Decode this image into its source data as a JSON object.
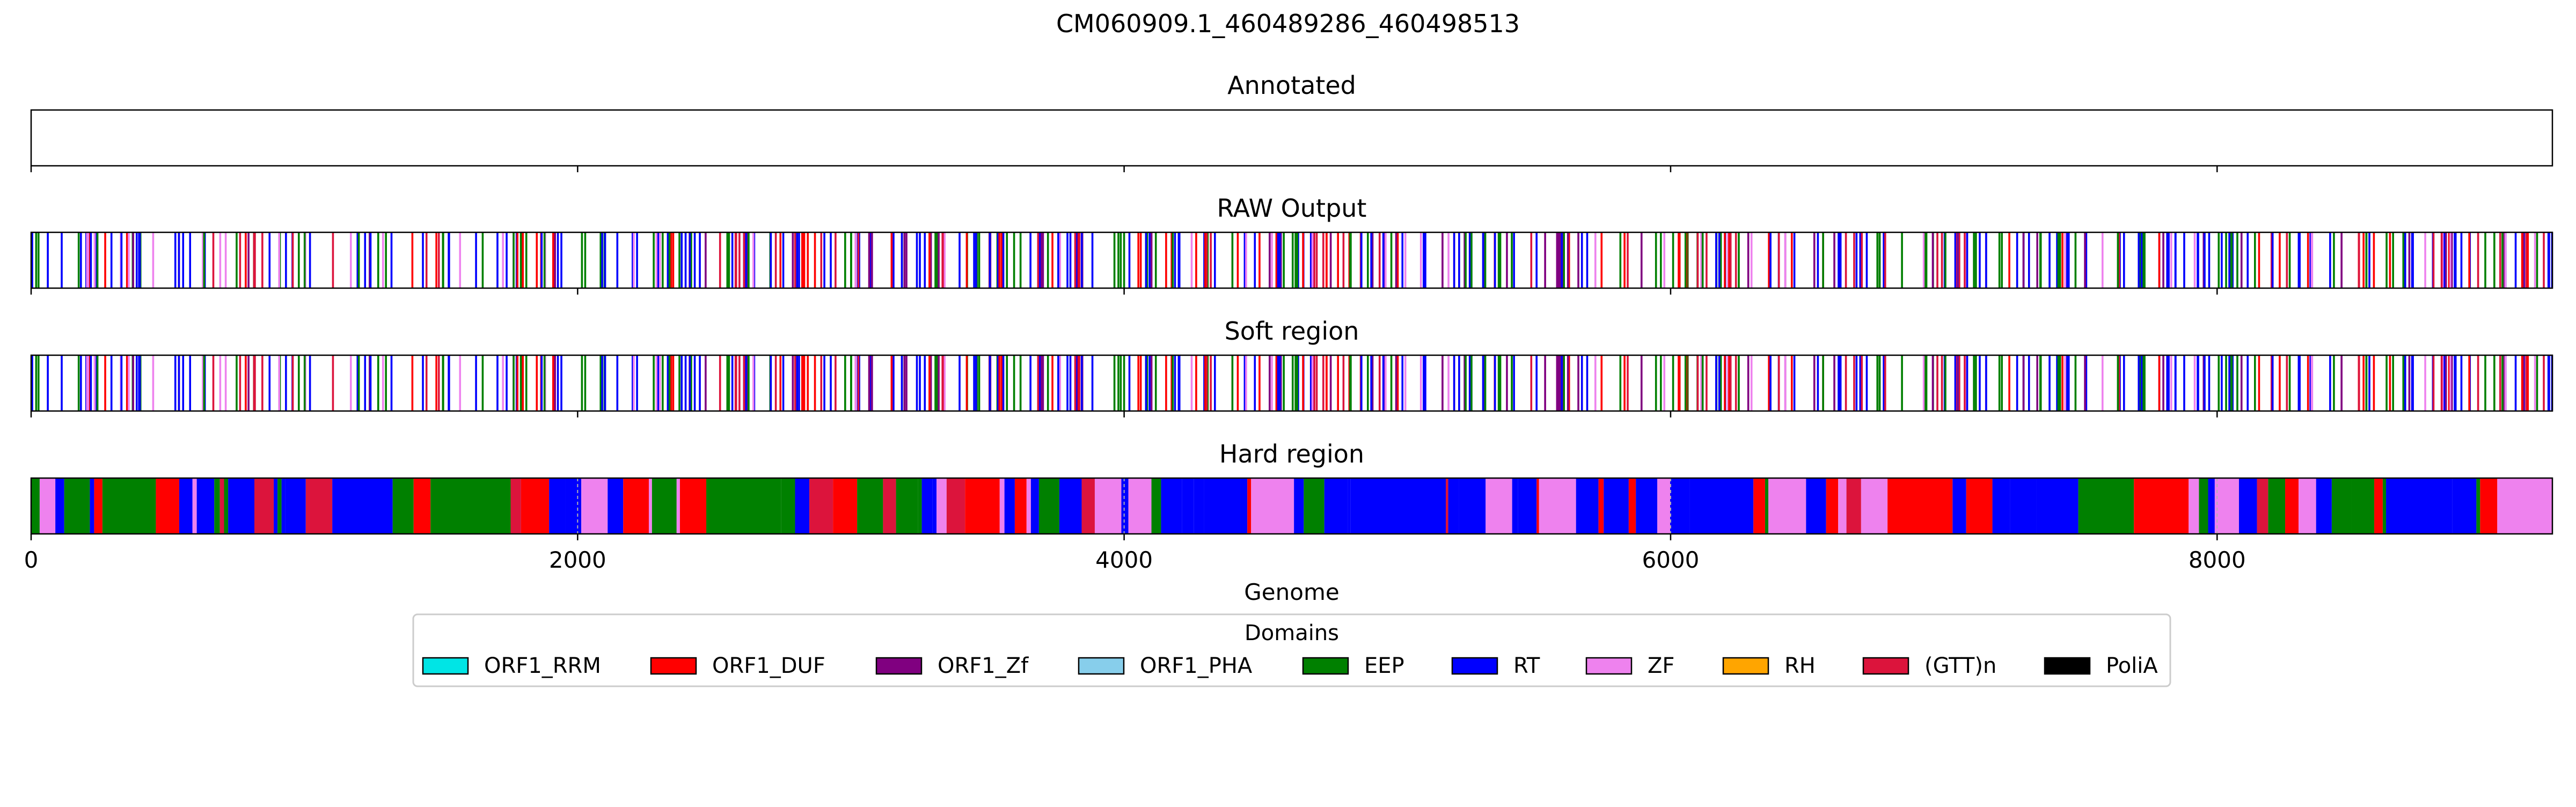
{
  "figure": {
    "suptitle": "CM060909.1_460489286_460498513"
  },
  "chart_data": {
    "type": "track",
    "x_range": [
      0,
      9227
    ],
    "xticks": [
      0,
      2000,
      4000,
      6000,
      8000
    ],
    "xlabel": "Genome",
    "panels": [
      {
        "title": "Annotated",
        "mode": "lines",
        "seed": 0,
        "count": 0
      },
      {
        "title": "RAW Output",
        "mode": "lines",
        "seed": 11,
        "count": 560
      },
      {
        "title": "Soft region",
        "mode": "lines",
        "seed": 11,
        "count": 560
      },
      {
        "title": "Hard region",
        "mode": "blocks",
        "seed": 23,
        "count": 0
      }
    ],
    "legend": {
      "title": "Domains",
      "position": "below",
      "items": [
        {
          "name": "ORF1_RRM",
          "color": "#00e5e5"
        },
        {
          "name": "ORF1_DUF",
          "color": "#ff0000"
        },
        {
          "name": "ORF1_Zf",
          "color": "#800080"
        },
        {
          "name": "ORF1_PHA",
          "color": "#87ceeb"
        },
        {
          "name": "EEP",
          "color": "#008000"
        },
        {
          "name": "RT",
          "color": "#0000ff"
        },
        {
          "name": "ZF",
          "color": "#ee82ee"
        },
        {
          "name": "RH",
          "color": "#ffa500"
        },
        {
          "name": "(GTT)n",
          "color": "#dc143c"
        },
        {
          "name": "PoliA",
          "color": "#000000"
        }
      ]
    },
    "line_palette": [
      "#0000ff",
      "#0000ff",
      "#0000ff",
      "#008000",
      "#008000",
      "#ff0000",
      "#ee82ee",
      "#800080",
      "#dc143c"
    ],
    "block_palette": [
      "#0000ff",
      "#0000ff",
      "#0000ff",
      "#008000",
      "#008000",
      "#ff0000",
      "#ee82ee",
      "#dc143c"
    ]
  }
}
